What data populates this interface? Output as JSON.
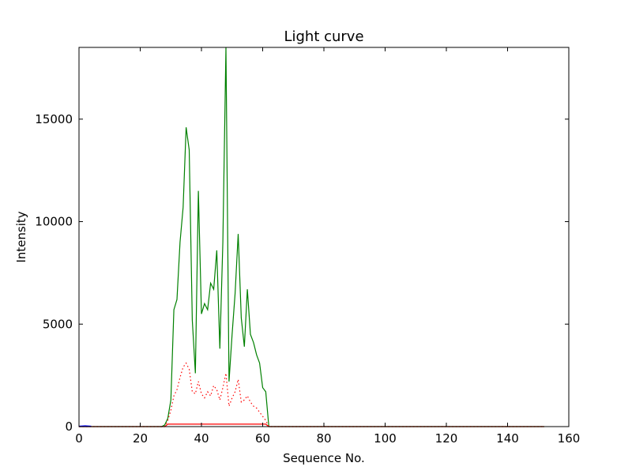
{
  "chart_data": {
    "type": "line",
    "title": "Light curve",
    "xlabel": "Sequence No.",
    "ylabel": "Intensity",
    "xlim": [
      0,
      160
    ],
    "ylim": [
      0,
      18500
    ],
    "xticks": [
      0,
      20,
      40,
      60,
      80,
      100,
      120,
      140,
      160
    ],
    "yticks": [
      0,
      5000,
      10000,
      15000
    ],
    "grid": false,
    "legend": "none",
    "series": [
      {
        "color": "#008000",
        "style": "solid",
        "x": [
          0,
          27,
          28,
          29,
          30,
          31,
          32,
          33,
          34,
          35,
          36,
          37,
          38,
          39,
          40,
          41,
          42,
          43,
          44,
          45,
          46,
          47,
          48,
          49,
          50,
          51,
          52,
          53,
          54,
          55,
          56,
          57,
          58,
          59,
          60,
          61,
          62,
          152
        ],
        "y": [
          0,
          0,
          80,
          400,
          1300,
          5700,
          6200,
          9000,
          10700,
          14600,
          13500,
          5200,
          2600,
          11500,
          5500,
          6000,
          5700,
          7000,
          6700,
          8600,
          3800,
          9000,
          18500,
          2200,
          4500,
          6500,
          9400,
          5300,
          3900,
          6700,
          4500,
          4100,
          3500,
          3100,
          1900,
          1700,
          0,
          0
        ]
      },
      {
        "color": "#ff0000",
        "style": "dotted",
        "x": [
          0,
          28,
          29,
          30,
          31,
          32,
          33,
          34,
          35,
          36,
          37,
          38,
          39,
          40,
          41,
          42,
          43,
          44,
          45,
          46,
          47,
          48,
          49,
          50,
          51,
          52,
          53,
          54,
          55,
          56,
          57,
          58,
          59,
          60,
          61,
          62,
          152
        ],
        "y": [
          0,
          0,
          300,
          800,
          1500,
          1800,
          2400,
          2900,
          3100,
          2800,
          1700,
          1600,
          2200,
          1600,
          1400,
          1700,
          1500,
          2000,
          1800,
          1300,
          1900,
          2600,
          1000,
          1400,
          1700,
          2300,
          1200,
          1300,
          1500,
          1200,
          1000,
          900,
          700,
          500,
          300,
          0,
          0
        ]
      },
      {
        "color": "#ff0000",
        "style": "solid",
        "x": [
          0,
          28,
          29,
          61,
          62,
          152
        ],
        "y": [
          0,
          0,
          120,
          120,
          0,
          0
        ]
      },
      {
        "color": "#0000ff",
        "style": "solid",
        "x": [
          0,
          2,
          4
        ],
        "y": [
          20,
          40,
          20
        ]
      }
    ]
  }
}
